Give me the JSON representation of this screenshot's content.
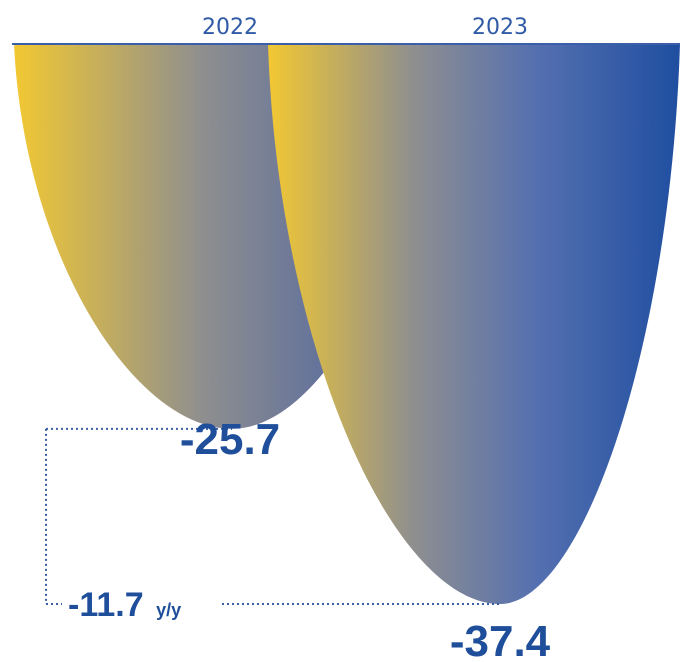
{
  "chart_data": {
    "type": "bar",
    "categories": [
      "2022",
      "2023"
    ],
    "values": [
      -25.7,
      -37.4
    ],
    "value_labels": [
      "-25.7",
      "-37.4"
    ],
    "ylim": [
      -37.4,
      0
    ],
    "change": {
      "value": -11.7,
      "label": "-11.7",
      "unit": "y/y"
    },
    "grid": false,
    "legend": "none"
  },
  "colors": {
    "gradient_start": "#f2c832",
    "gradient_mid": "#8f8f8f",
    "gradient_end": "#1f4ea0",
    "baseline": "#3a5fa8",
    "text": "#1f4e9a",
    "connector": "#3a5fa8"
  }
}
